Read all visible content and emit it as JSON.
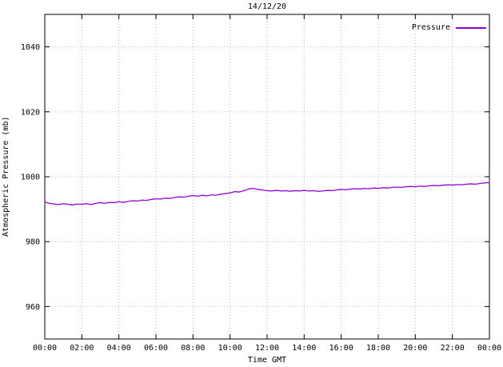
{
  "chart_data": {
    "type": "line",
    "title": "14/12/20",
    "xlabel": "Time GMT",
    "ylabel": "Atmospheric Pressure (mb)",
    "grid": true,
    "legend_position": "top-right",
    "x_range": [
      0,
      24
    ],
    "y_range": [
      950,
      1050
    ],
    "x_ticks": {
      "hours": [
        0,
        2,
        4,
        6,
        8,
        10,
        12,
        14,
        16,
        18,
        20,
        22,
        24
      ],
      "labels": [
        "00:00",
        "02:00",
        "04:00",
        "06:00",
        "08:00",
        "10:00",
        "12:00",
        "14:00",
        "16:00",
        "18:00",
        "20:00",
        "22:00",
        "00:00"
      ]
    },
    "y_ticks": [
      960,
      980,
      1000,
      1020,
      1040
    ],
    "series": [
      {
        "name": "Pressure",
        "color": "#9400d3",
        "x_start_hour": 0,
        "x_step_hours": 0.25,
        "values": [
          992.2,
          991.8,
          991.6,
          991.4,
          991.7,
          991.5,
          991.3,
          991.6,
          991.5,
          991.7,
          991.4,
          991.8,
          992.0,
          991.8,
          992.1,
          992.0,
          992.3,
          992.1,
          992.4,
          992.6,
          992.5,
          992.8,
          992.7,
          993.0,
          993.2,
          993.1,
          993.4,
          993.3,
          993.6,
          993.8,
          993.7,
          994.0,
          994.2,
          994.0,
          994.3,
          994.1,
          994.4,
          994.3,
          994.6,
          994.8,
          995.0,
          995.4,
          995.3,
          995.7,
          996.2,
          996.4,
          996.1,
          995.9,
          995.7,
          995.6,
          995.8,
          995.6,
          995.7,
          995.5,
          995.7,
          995.6,
          995.8,
          995.6,
          995.7,
          995.5,
          995.6,
          995.8,
          995.7,
          995.9,
          996.1,
          996.0,
          996.2,
          996.3,
          996.2,
          996.4,
          996.3,
          996.5,
          996.4,
          996.6,
          996.5,
          996.7,
          996.8,
          996.7,
          996.9,
          997.0,
          996.9,
          997.1,
          997.0,
          997.2,
          997.3,
          997.2,
          997.4,
          997.5,
          997.4,
          997.6,
          997.5,
          997.7,
          997.8,
          997.7,
          997.9,
          998.1,
          998.2
        ]
      }
    ]
  }
}
